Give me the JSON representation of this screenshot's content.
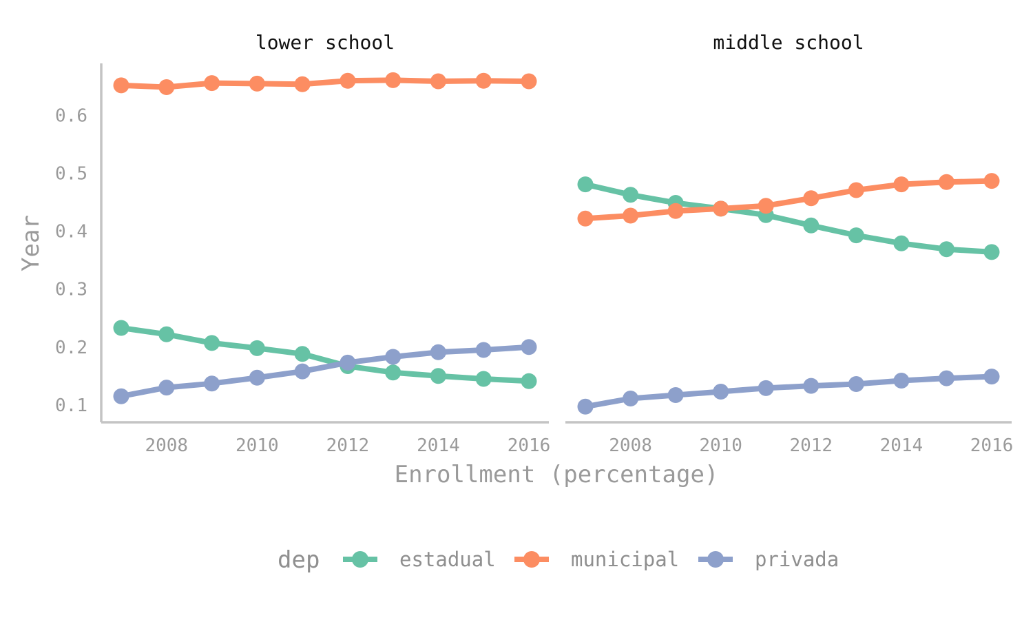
{
  "chart_data": {
    "type": "line",
    "xlabel": "Enrollment (percentage)",
    "ylabel": "Year",
    "x_ticks": [
      2008,
      2010,
      2012,
      2014,
      2016
    ],
    "y_ticks": [
      0.1,
      0.2,
      0.3,
      0.4,
      0.5,
      0.6
    ],
    "y_tick_labels": [
      "0.1",
      "0.2",
      "0.3",
      "0.4",
      "0.5",
      "0.6"
    ],
    "xlim": [
      2006.8,
      2016.2
    ],
    "ylim": [
      0.07,
      0.69
    ],
    "grid": false,
    "legend": {
      "title": "dep",
      "position": "bottom",
      "entries": [
        "estadual",
        "municipal",
        "privada"
      ]
    },
    "x": [
      2007,
      2008,
      2009,
      2010,
      2011,
      2012,
      2013,
      2014,
      2015,
      2016
    ],
    "panels": [
      {
        "title": "lower school",
        "series": [
          {
            "name": "estadual",
            "color": "#66c2a5",
            "values": [
              0.233,
              0.222,
              0.207,
              0.198,
              0.188,
              0.167,
              0.156,
              0.15,
              0.145,
              0.141
            ]
          },
          {
            "name": "municipal",
            "color": "#fc8d62",
            "values": [
              0.652,
              0.649,
              0.656,
              0.655,
              0.654,
              0.66,
              0.661,
              0.659,
              0.66,
              0.659
            ]
          },
          {
            "name": "privada",
            "color": "#8da0cb",
            "values": [
              0.115,
              0.13,
              0.137,
              0.147,
              0.158,
              0.173,
              0.183,
              0.191,
              0.195,
              0.2
            ]
          }
        ]
      },
      {
        "title": "middle school",
        "series": [
          {
            "name": "estadual",
            "color": "#66c2a5",
            "values": [
              0.481,
              0.463,
              0.449,
              0.439,
              0.428,
              0.41,
              0.393,
              0.379,
              0.369,
              0.364
            ]
          },
          {
            "name": "municipal",
            "color": "#fc8d62",
            "values": [
              0.422,
              0.427,
              0.435,
              0.439,
              0.444,
              0.457,
              0.471,
              0.481,
              0.485,
              0.487
            ]
          },
          {
            "name": "privada",
            "color": "#8da0cb",
            "values": [
              0.097,
              0.111,
              0.117,
              0.123,
              0.129,
              0.133,
              0.136,
              0.142,
              0.146,
              0.149
            ]
          }
        ]
      }
    ]
  }
}
